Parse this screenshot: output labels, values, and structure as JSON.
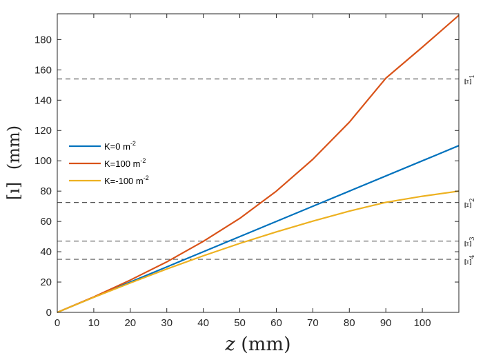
{
  "chart_data": {
    "type": "line",
    "title": "",
    "xlabel": {
      "var": "z",
      "unit": "(mm)"
    },
    "ylabel": {
      "var": "[ı]",
      "unit": "(mm)"
    },
    "xlim": [
      0,
      110
    ],
    "ylim": [
      0,
      197
    ],
    "xticks": [
      0,
      10,
      20,
      30,
      40,
      50,
      60,
      70,
      80,
      90,
      100
    ],
    "yticks": [
      0,
      20,
      40,
      60,
      80,
      100,
      120,
      140,
      160,
      180
    ],
    "grid": false,
    "legend_position": "middle-left",
    "series": [
      {
        "name": "K=0 m",
        "sup": "-2",
        "color": "#0072BD",
        "x": [
          0,
          10,
          20,
          30,
          40,
          50,
          60,
          70,
          80,
          90,
          100,
          110
        ],
        "y": [
          0,
          10,
          20,
          30,
          40,
          50,
          60,
          70,
          80,
          90,
          100,
          110
        ]
      },
      {
        "name": "K=100 m",
        "sup": "-2",
        "color": "#D95319",
        "x": [
          0,
          10,
          20,
          30,
          40,
          50,
          60,
          70,
          80,
          90,
          100,
          110
        ],
        "y": [
          0,
          10.2,
          21.3,
          33.3,
          46.8,
          62.0,
          80.0,
          101.0,
          125.5,
          154.5,
          175.0,
          196.0
        ]
      },
      {
        "name": "K=-100 m",
        "sup": "-2",
        "color": "#EDB120",
        "x": [
          0,
          10,
          20,
          30,
          40,
          50,
          60,
          70,
          80,
          90,
          100,
          110
        ],
        "y": [
          0,
          9.9,
          19.4,
          28.6,
          37.3,
          45.5,
          53.1,
          60.2,
          66.8,
          72.6,
          76.6,
          80.0
        ]
      }
    ],
    "reference_lines": [
      {
        "label": "Ξ",
        "sub": "1",
        "y": 154
      },
      {
        "label": "Ξ",
        "sub": "2",
        "y": 72.5
      },
      {
        "label": "Ξ",
        "sub": "3",
        "y": 47
      },
      {
        "label": "Ξ",
        "sub": "4",
        "y": 35
      }
    ]
  }
}
